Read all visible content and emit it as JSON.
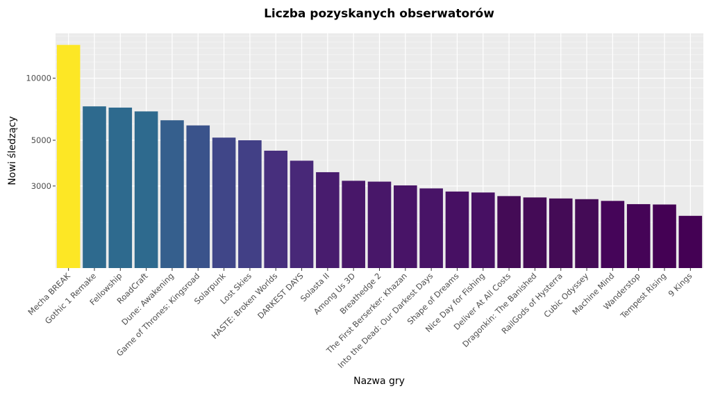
{
  "chart_data": {
    "type": "bar",
    "title": "Liczba pozyskanych obserwatorów",
    "xlabel": "Nazwa gry",
    "ylabel": "Nowi śledzący",
    "y_scale": "log",
    "ylim": [
      1200,
      16500
    ],
    "yticks": [
      3000,
      5000,
      10000
    ],
    "ytick_labels": [
      "3000",
      "5000",
      "10000"
    ],
    "grid": true,
    "legend": "none",
    "categories": [
      "Mecha BREAK",
      "Gothic 1 Remake",
      "Fellowship",
      "RoadCraft",
      "Dune: Awakening",
      "Game of Thrones: Kingsroad",
      "Solarpunk",
      "Lost Skies",
      "HASTE: Broken Worlds",
      "DARKEST DAYS",
      "Solasta II",
      "Among Us 3D",
      "Breathedge 2",
      "The First Berserker: Khazan",
      "Into the Dead: Our Darkest Days",
      "Shape of Dreams",
      "Nice Day for Fishing",
      "Deliver At All Costs",
      "Dragonkin: The Banished",
      "RailGods of Hysterra",
      "Cubic Odyssey",
      "Machine Mind",
      "Wanderstop",
      "Tempest Rising",
      "9 Kings"
    ],
    "values": [
      14500,
      7300,
      7200,
      6900,
      6250,
      5900,
      5150,
      5000,
      4450,
      3980,
      3500,
      3180,
      3150,
      3020,
      2920,
      2820,
      2790,
      2680,
      2640,
      2610,
      2590,
      2540,
      2450,
      2440,
      2150
    ],
    "colors": [
      "#fde725",
      "#2e6a8e",
      "#2e6a8e",
      "#2e6a8e",
      "#355f8d",
      "#3a538b",
      "#404688",
      "#424086",
      "#472f7d",
      "#482878",
      "#481c6e",
      "#481769",
      "#481769",
      "#481467",
      "#481467",
      "#471063",
      "#471063",
      "#440b56",
      "#440b56",
      "#440b56",
      "#440b56",
      "#450559",
      "#450457",
      "#440154",
      "#440154"
    ]
  }
}
